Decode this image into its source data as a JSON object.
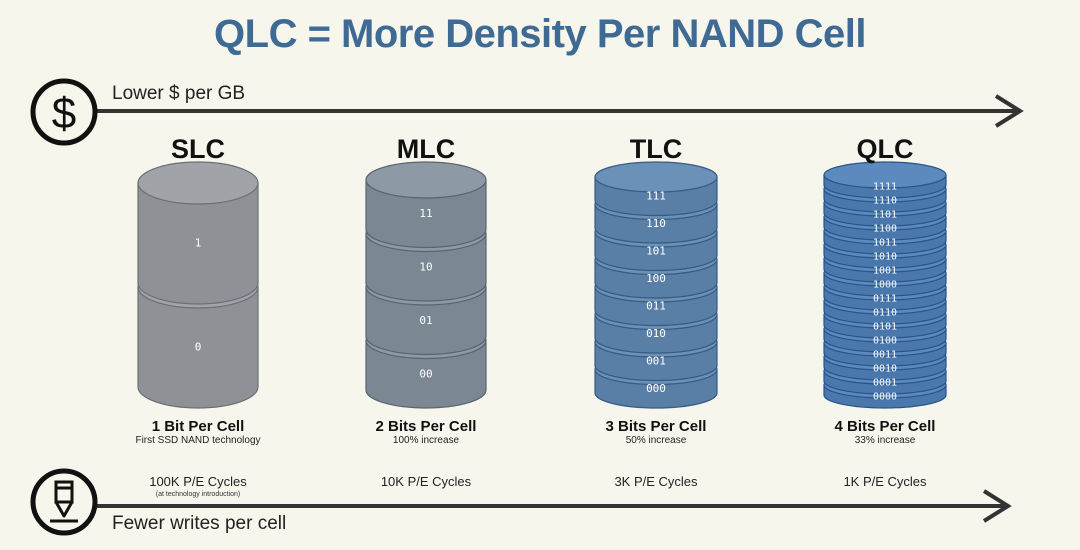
{
  "title": "QLC = More Density Per NAND Cell",
  "axes": {
    "top_label": "Lower $ per GB",
    "bottom_label": "Fewer writes per cell",
    "top_icon": "dollar-icon",
    "bottom_icon": "pencil-icon"
  },
  "colors": {
    "title": "#3f6a93",
    "slc": "#8e9297",
    "mlc": "#7c8794",
    "tlc": "#5a7fa6",
    "qlc": "#4a78ac"
  },
  "columns": [
    {
      "name": "SLC",
      "bits_label": "1 Bit Per Cell",
      "subtitle": "First SSD NAND technology",
      "cycles": "100K P/E Cycles",
      "note": "(at technology introduction)",
      "states": [
        "1",
        "0"
      ]
    },
    {
      "name": "MLC",
      "bits_label": "2 Bits Per Cell",
      "subtitle": "100% increase",
      "cycles": "10K P/E Cycles",
      "note": "",
      "states": [
        "11",
        "10",
        "01",
        "00"
      ]
    },
    {
      "name": "TLC",
      "bits_label": "3 Bits Per Cell",
      "subtitle": "50% increase",
      "cycles": "3K P/E Cycles",
      "note": "",
      "states": [
        "111",
        "110",
        "101",
        "100",
        "011",
        "010",
        "001",
        "000"
      ]
    },
    {
      "name": "QLC",
      "bits_label": "4 Bits Per Cell",
      "subtitle": "33% increase",
      "cycles": "1K P/E Cycles",
      "note": "",
      "states": [
        "1111",
        "1110",
        "1101",
        "1100",
        "1011",
        "1010",
        "1001",
        "1000",
        "0111",
        "0110",
        "0101",
        "0100",
        "0011",
        "0010",
        "0001",
        "0000"
      ]
    }
  ]
}
